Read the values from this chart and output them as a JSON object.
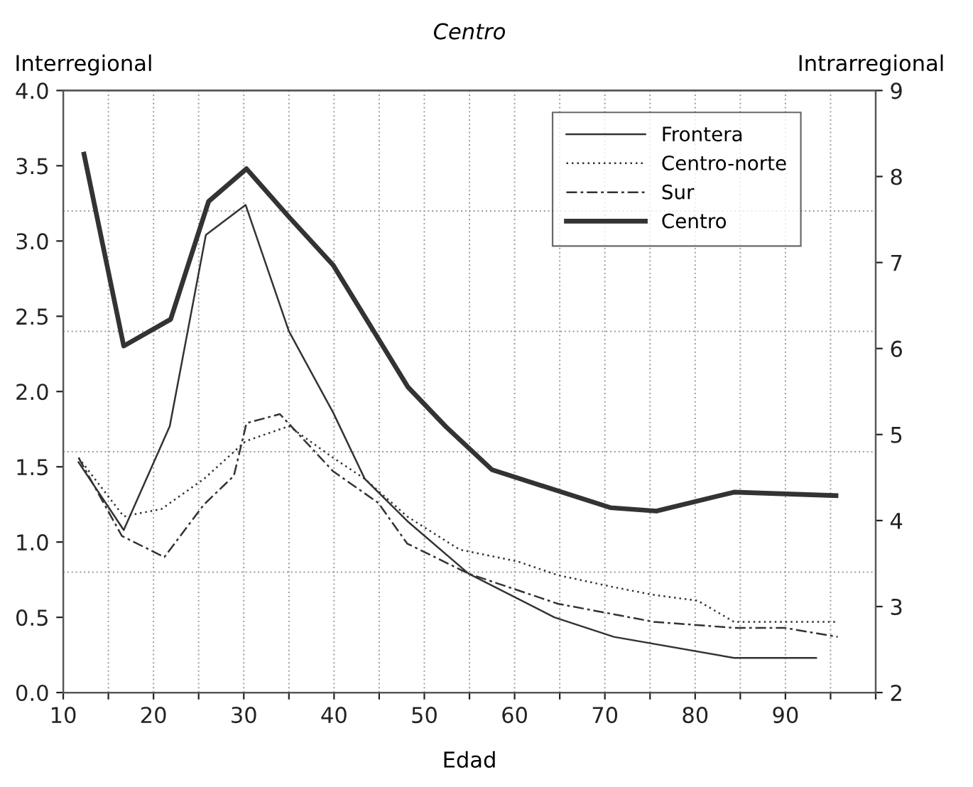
{
  "chart_data": {
    "type": "line",
    "title": "Centro",
    "xlabel": "Edad",
    "ylabel": "Interregional",
    "y2label": "Intrarregional",
    "xlim": [
      10,
      100
    ],
    "xticks": [
      10,
      {
        "value": 15,
        "label": null
      },
      20,
      {
        "value": 25,
        "label": null
      },
      30,
      {
        "value": 35,
        "label": null
      },
      40,
      {
        "value": 45,
        "label": null
      },
      50,
      {
        "value": 55,
        "label": null
      },
      60,
      {
        "value": 65,
        "label": null
      },
      70,
      {
        "value": 75,
        "label": null
      },
      80,
      {
        "value": 85,
        "label": null
      },
      90,
      {
        "value": 95,
        "label": null
      },
      {
        "value": 100,
        "label": null
      }
    ],
    "ylim": [
      0,
      4
    ],
    "yticks": [
      {
        "value": 0,
        "label": "0.0"
      },
      0.5,
      {
        "value": 1,
        "label": "1.0"
      },
      1.5,
      {
        "value": 2,
        "label": "2.0"
      },
      2.5,
      {
        "value": 3,
        "label": "3.0"
      },
      3.5,
      {
        "value": 4,
        "label": "4.0"
      }
    ],
    "y2lim": [
      2,
      9
    ],
    "y2ticks": [
      2,
      3,
      4,
      5,
      6,
      7,
      8,
      9
    ],
    "grid": "x",
    "legend": "top right",
    "ref_lines": [
      {
        "axis": "y",
        "value": 0.8,
        "color": "#999999",
        "line_style": "dotted"
      },
      {
        "axis": "y",
        "value": 1.6,
        "color": "#999999",
        "line_style": "dotted"
      },
      {
        "axis": "y",
        "value": 2.4,
        "color": "#999999",
        "line_style": "dotted"
      },
      {
        "axis": "y",
        "value": 3.2,
        "color": "#999999",
        "line_style": "dotted"
      }
    ],
    "series": [
      {
        "name": "Frontera",
        "color": "#333333",
        "line_style": "solid",
        "x": [
          11.7,
          16.7,
          21.8,
          25.8,
          30.2,
          35.0,
          39.9,
          43.4,
          48.1,
          54.9,
          64.4,
          71.0,
          84.3,
          93.4
        ],
        "values": [
          1.53,
          1.08,
          1.77,
          3.04,
          3.24,
          2.4,
          1.86,
          1.42,
          1.14,
          0.79,
          0.5,
          0.37,
          0.23,
          0.23
        ]
      },
      {
        "name": "Centro-norte",
        "color": "#333333",
        "line_style": "dotted",
        "x": [
          11.7,
          16.7,
          20.9,
          25.6,
          30.2,
          35.0,
          39.9,
          43.4,
          48.1,
          53.9,
          60.4,
          64.8,
          71.0,
          75.3,
          80.3,
          84.3,
          95.6
        ],
        "values": [
          1.56,
          1.17,
          1.22,
          1.42,
          1.67,
          1.77,
          1.56,
          1.42,
          1.17,
          0.95,
          0.87,
          0.78,
          0.7,
          0.65,
          0.61,
          0.47,
          0.47
        ]
      },
      {
        "name": "Sur",
        "color": "#333333",
        "line_style": "dashed",
        "x": [
          11.7,
          16.5,
          21.2,
          25.6,
          28.9,
          30.3,
          34.0,
          39.9,
          44.9,
          48.1,
          54.9,
          64.8,
          75.4,
          84.3,
          89.9,
          95.8
        ],
        "values": [
          1.56,
          1.04,
          0.9,
          1.25,
          1.44,
          1.79,
          1.85,
          1.47,
          1.26,
          0.99,
          0.79,
          0.59,
          0.47,
          0.43,
          0.43,
          0.37
        ]
      },
      {
        "name": "Centro",
        "color": "#333333",
        "line_style": "solid",
        "axis": "y2",
        "x": [
          12.3,
          16.7,
          21.9,
          26.1,
          30.3,
          35.0,
          39.9,
          48.2,
          52.4,
          57.5,
          70.6,
          75.7,
          84.3,
          95.6
        ],
        "values": [
          8.26,
          6.03,
          6.34,
          7.71,
          8.09,
          7.53,
          6.97,
          5.55,
          5.09,
          4.59,
          4.15,
          4.11,
          4.33,
          4.29
        ]
      }
    ]
  }
}
